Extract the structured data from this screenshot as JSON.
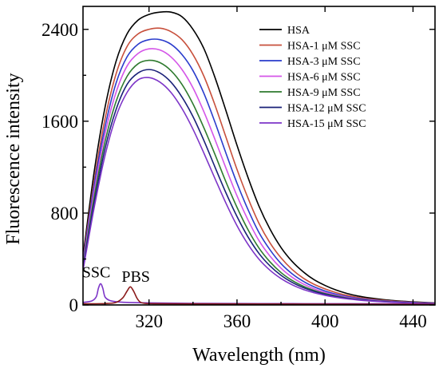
{
  "chart_data": {
    "type": "line",
    "xlabel": "Wavelength (nm)",
    "ylabel": "Fluorescence intensity",
    "xlim": [
      290,
      450
    ],
    "ylim": [
      0,
      2600
    ],
    "xticks": [
      320,
      360,
      400,
      440
    ],
    "yticks": [
      0,
      800,
      1600,
      2400
    ],
    "grid": false,
    "legend_position": "top-right",
    "series": [
      {
        "name": "HSA",
        "color": "#000000",
        "x": [
          290,
          295,
          300,
          305,
          310,
          315,
          320,
          325,
          330,
          335,
          340,
          345,
          350,
          355,
          360,
          365,
          370,
          375,
          380,
          385,
          390,
          395,
          400,
          405,
          410,
          415,
          420,
          425,
          430,
          435,
          440,
          445,
          450
        ],
        "y": [
          420,
          1150,
          1720,
          2120,
          2360,
          2480,
          2530,
          2550,
          2550,
          2510,
          2400,
          2230,
          1980,
          1690,
          1390,
          1110,
          860,
          660,
          500,
          380,
          290,
          220,
          170,
          130,
          100,
          78,
          62,
          50,
          40,
          33,
          27,
          22,
          18
        ]
      },
      {
        "name": "HSA-1 μM SSC",
        "color": "#c8503c",
        "x": [
          290,
          295,
          300,
          305,
          310,
          315,
          320,
          325,
          330,
          335,
          340,
          345,
          350,
          355,
          360,
          365,
          370,
          375,
          380,
          385,
          390,
          395,
          400,
          405,
          410,
          415,
          420,
          425,
          430,
          435,
          440,
          445,
          450
        ],
        "y": [
          390,
          1070,
          1620,
          2010,
          2250,
          2360,
          2400,
          2410,
          2380,
          2310,
          2180,
          1990,
          1740,
          1460,
          1180,
          930,
          710,
          540,
          410,
          310,
          235,
          180,
          140,
          108,
          84,
          66,
          53,
          43,
          35,
          29,
          24,
          20,
          16
        ]
      },
      {
        "name": "HSA-3 μM SSC",
        "color": "#2a3ccc",
        "x": [
          290,
          295,
          300,
          305,
          310,
          315,
          320,
          325,
          330,
          335,
          340,
          345,
          350,
          355,
          360,
          365,
          370,
          375,
          380,
          385,
          390,
          395,
          400,
          405,
          410,
          415,
          420,
          425,
          430,
          435,
          440,
          445,
          450
        ],
        "y": [
          370,
          1030,
          1550,
          1930,
          2160,
          2270,
          2310,
          2310,
          2270,
          2180,
          2040,
          1840,
          1590,
          1320,
          1060,
          830,
          630,
          480,
          360,
          272,
          207,
          158,
          122,
          94,
          73,
          58,
          47,
          38,
          31,
          26,
          22,
          18,
          15
        ]
      },
      {
        "name": "HSA-6 μM SSC",
        "color": "#d455e8",
        "x": [
          290,
          295,
          300,
          305,
          310,
          315,
          320,
          325,
          330,
          335,
          340,
          345,
          350,
          355,
          360,
          365,
          370,
          375,
          380,
          385,
          390,
          395,
          400,
          405,
          410,
          415,
          420,
          425,
          430,
          435,
          440,
          445,
          450
        ],
        "y": [
          350,
          980,
          1490,
          1850,
          2080,
          2190,
          2230,
          2220,
          2160,
          2050,
          1890,
          1680,
          1440,
          1190,
          950,
          740,
          560,
          425,
          320,
          242,
          184,
          141,
          109,
          85,
          67,
          53,
          43,
          35,
          29,
          24,
          20,
          17,
          14
        ]
      },
      {
        "name": "HSA-9 μM SSC",
        "color": "#2e7a2e",
        "x": [
          290,
          295,
          300,
          305,
          310,
          315,
          320,
          325,
          330,
          335,
          340,
          345,
          350,
          355,
          360,
          365,
          370,
          375,
          380,
          385,
          390,
          395,
          400,
          405,
          410,
          415,
          420,
          425,
          430,
          435,
          440,
          445,
          450
        ],
        "y": [
          330,
          930,
          1420,
          1770,
          1990,
          2100,
          2130,
          2110,
          2040,
          1920,
          1750,
          1540,
          1310,
          1070,
          850,
          655,
          495,
          375,
          282,
          214,
          164,
          127,
          99,
          78,
          61,
          49,
          40,
          33,
          27,
          23,
          19,
          16,
          13
        ]
      },
      {
        "name": "HSA-12 μM SSC",
        "color": "#1a2178",
        "x": [
          290,
          295,
          300,
          305,
          310,
          315,
          320,
          325,
          330,
          335,
          340,
          345,
          350,
          355,
          360,
          365,
          370,
          375,
          380,
          385,
          390,
          395,
          400,
          405,
          410,
          415,
          420,
          425,
          430,
          435,
          440,
          445,
          450
        ],
        "y": [
          320,
          880,
          1360,
          1700,
          1920,
          2020,
          2050,
          2020,
          1940,
          1810,
          1640,
          1430,
          1200,
          975,
          770,
          592,
          448,
          340,
          258,
          197,
          152,
          118,
          93,
          73,
          58,
          47,
          38,
          31,
          26,
          22,
          18,
          15,
          13
        ]
      },
      {
        "name": "HSA-15 μM SSC",
        "color": "#7d35c8",
        "x": [
          290,
          295,
          300,
          305,
          310,
          315,
          320,
          325,
          330,
          335,
          340,
          345,
          350,
          355,
          360,
          365,
          370,
          375,
          380,
          385,
          390,
          395,
          400,
          405,
          410,
          415,
          420,
          425,
          430,
          435,
          440,
          445,
          450
        ],
        "y": [
          300,
          840,
          1300,
          1640,
          1850,
          1960,
          1980,
          1940,
          1850,
          1710,
          1530,
          1320,
          1100,
          885,
          690,
          528,
          398,
          302,
          230,
          176,
          136,
          106,
          84,
          66,
          53,
          43,
          35,
          29,
          24,
          20,
          17,
          14,
          12
        ]
      },
      {
        "name": "SSC",
        "color": "#7d35c8",
        "x": [
          290,
          294,
          296,
          297,
          298,
          299,
          300,
          302,
          305,
          310,
          320,
          340,
          370,
          400,
          430,
          450
        ],
        "y": [
          22,
          35,
          70,
          145,
          185,
          145,
          70,
          40,
          28,
          22,
          18,
          14,
          12,
          11,
          10,
          10
        ]
      },
      {
        "name": "PBS",
        "color": "#8b1a1a",
        "x": [
          290,
          300,
          305,
          308,
          310,
          311.5,
          313,
          314.5,
          316,
          318,
          322,
          330,
          345,
          370,
          400,
          430,
          450
        ],
        "y": [
          10,
          12,
          22,
          60,
          120,
          158,
          120,
          60,
          25,
          14,
          11,
          10,
          9,
          8,
          7,
          6,
          5
        ]
      }
    ],
    "legend": [
      "HSA",
      "HSA-1 μM SSC",
      "HSA-3 μM SSC",
      "HSA-6 μM SSC",
      "HSA-9 μM SSC",
      "HSA-12 μM SSC",
      "HSA-15 μM SSC"
    ],
    "annotations": [
      {
        "text": "SSC",
        "x": 296,
        "y": 240
      },
      {
        "text": "PBS",
        "x": 314,
        "y": 200
      }
    ]
  }
}
